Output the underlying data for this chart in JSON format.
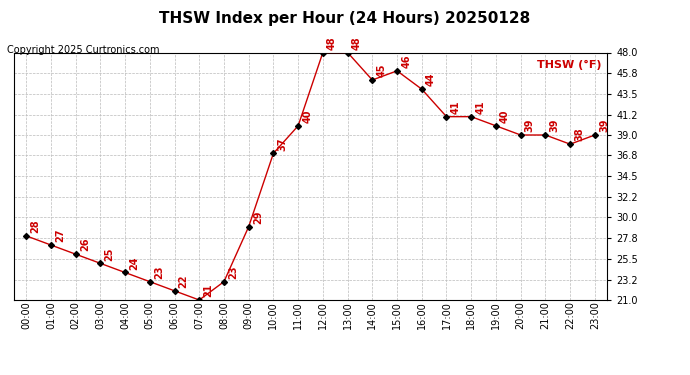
{
  "title": "THSW Index per Hour (24 Hours) 20250128",
  "copyright": "Copyright 2025 Curtronics.com",
  "legend_label": "THSW (°F)",
  "hours": [
    "00:00",
    "01:00",
    "02:00",
    "03:00",
    "04:00",
    "05:00",
    "06:00",
    "07:00",
    "08:00",
    "09:00",
    "10:00",
    "11:00",
    "12:00",
    "13:00",
    "14:00",
    "15:00",
    "16:00",
    "17:00",
    "18:00",
    "19:00",
    "20:00",
    "21:00",
    "22:00",
    "23:00"
  ],
  "values": [
    28,
    27,
    26,
    25,
    24,
    23,
    22,
    21,
    23,
    29,
    37,
    40,
    48,
    48,
    45,
    46,
    44,
    41,
    41,
    40,
    39,
    39,
    38,
    39
  ],
  "ylim_min": 21.0,
  "ylim_max": 48.0,
  "yticks": [
    21.0,
    23.2,
    25.5,
    27.8,
    30.0,
    32.2,
    34.5,
    36.8,
    39.0,
    41.2,
    43.5,
    45.8,
    48.0
  ],
  "line_color": "#cc0000",
  "marker_color": "#000000",
  "background_color": "#ffffff",
  "grid_color": "#bbbbbb",
  "title_fontsize": 11,
  "legend_fontsize": 8,
  "tick_fontsize": 7,
  "annotation_fontsize": 7,
  "copyright_fontsize": 7
}
